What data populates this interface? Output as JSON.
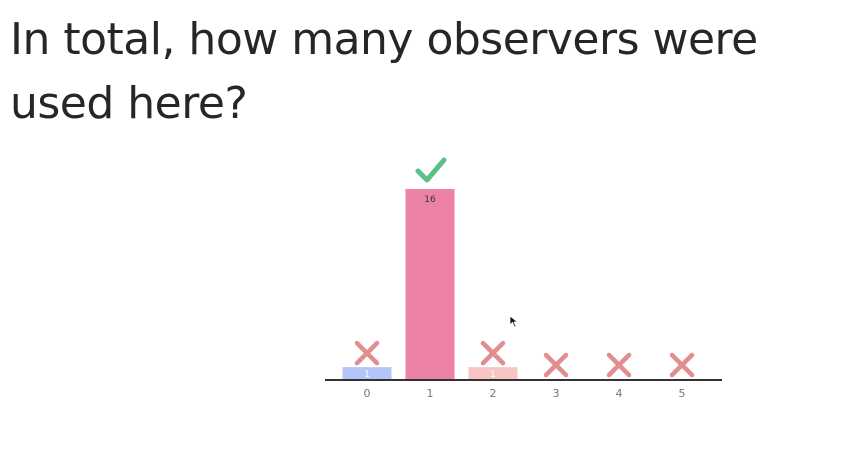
{
  "question": {
    "text": "In total, how many observers were used here?"
  },
  "chart_data": {
    "type": "bar",
    "categories": [
      "0",
      "1",
      "2",
      "3",
      "4",
      "5"
    ],
    "values": [
      1,
      16,
      1,
      0,
      0,
      0
    ],
    "value_labels": [
      "1",
      "16",
      "1",
      "",
      "",
      ""
    ],
    "correct": [
      false,
      true,
      false,
      false,
      false,
      false
    ],
    "bar_colors": [
      "#b4c5f7",
      "#ec82a6",
      "#f8c5c4",
      "#f8c5c4",
      "#f8c5c4",
      "#f8c5c4"
    ],
    "ylim": [
      0,
      16
    ],
    "grid": false,
    "marks": {
      "correct_icon": "check-icon",
      "wrong_icon": "cross-icon"
    },
    "colors": {
      "check": "#5cbf85",
      "cross": "#e08e8f",
      "axis": "#333333",
      "tick": "#777777"
    }
  }
}
